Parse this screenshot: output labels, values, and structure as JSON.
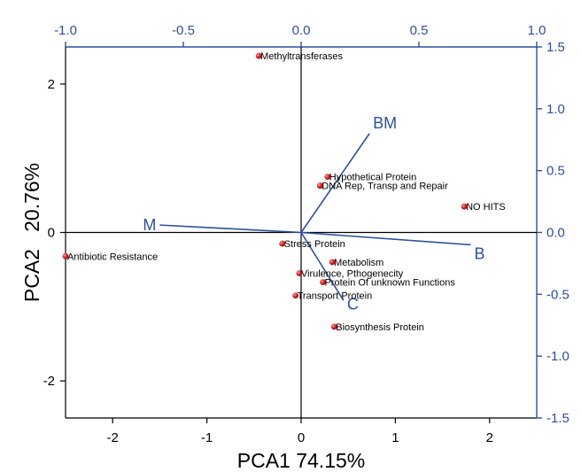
{
  "chart_data": {
    "type": "scatter",
    "xlabel": "PCA1  74.15%",
    "ylabel": "PCA2   20.76%",
    "xlim": [
      -2.5,
      2.5
    ],
    "ylim": [
      -2.5,
      2.5
    ],
    "x_ticks": [
      -2,
      -1,
      0,
      1,
      2
    ],
    "y_ticks": [
      -2,
      0,
      2
    ],
    "secondary_xlim": [
      -1.0,
      1.0
    ],
    "secondary_ylim": [
      -1.5,
      1.5
    ],
    "secondary_x_ticks": [
      "-1.0",
      "-0.5",
      "0.0",
      "0.5",
      "1.0"
    ],
    "secondary_y_ticks": [
      "1.5",
      "1.0",
      "0.5",
      "0.0",
      "-0.5",
      "-1.0",
      "-1.5"
    ],
    "grid": false,
    "point_color": "#e02020",
    "vector_color": "#2b4fa0",
    "points": [
      {
        "label": "Methyltransferases",
        "x": -0.45,
        "y": 2.38
      },
      {
        "label": "Hypothetical Protein",
        "x": 0.28,
        "y": 0.75
      },
      {
        "label": "DNA Rep, Transp and Repair",
        "x": 0.2,
        "y": 0.63
      },
      {
        "label": "NO HITS",
        "x": 1.73,
        "y": 0.35
      },
      {
        "label": "Stress Protein",
        "x": -0.2,
        "y": -0.15
      },
      {
        "label": "Antibiotic Resistance",
        "x": -2.5,
        "y": -0.32
      },
      {
        "label": "Metabolism",
        "x": 0.33,
        "y": -0.4
      },
      {
        "label": "Virulence, Pthogenecity",
        "x": -0.02,
        "y": -0.55
      },
      {
        "label": "Protein Of unknown Functions",
        "x": 0.23,
        "y": -0.67
      },
      {
        "label": "Transport Protein",
        "x": -0.06,
        "y": -0.85
      },
      {
        "label": "Biosynthesis Protein",
        "x": 0.35,
        "y": -1.27
      }
    ],
    "vectors": [
      {
        "label": "BM",
        "x": 0.29,
        "y": 0.8
      },
      {
        "label": "M",
        "x": -0.6,
        "y": 0.06
      },
      {
        "label": "B",
        "x": 0.72,
        "y": -0.1
      },
      {
        "label": "C",
        "x": 0.18,
        "y": -0.55
      }
    ]
  }
}
